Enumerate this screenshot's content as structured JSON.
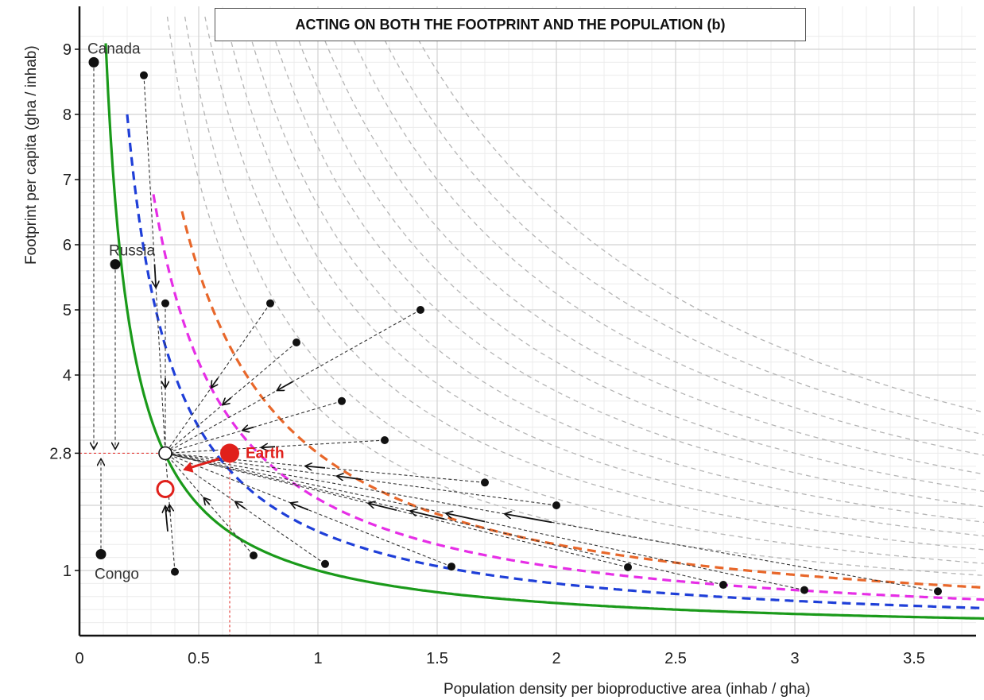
{
  "title": "ACTING ON BOTH THE FOOTPRINT AND THE POPULATION (b)",
  "colors": {
    "green": "#1a9a1a",
    "blue": "#1f3fd8",
    "magenta": "#e62ee6",
    "orange": "#e8672a",
    "gray": "#b5b5b5",
    "red": "#e0201b",
    "black": "#111111"
  },
  "chart_data": {
    "type": "scatter",
    "xlabel": "Population density per bioproductive area (inhab / gha)",
    "ylabel": "Footprint per capita (gha / inhab)",
    "xlim": [
      0,
      3.8
    ],
    "ylim": [
      0,
      9.3
    ],
    "x_ticks": [
      "0",
      "0.5",
      "1",
      "1.5",
      "2",
      "2.5",
      "3",
      "3.5"
    ],
    "y_ticks": [
      "1",
      "2.8",
      "4",
      "5",
      "6",
      "7",
      "8",
      "9"
    ],
    "x_tick_values": [
      0,
      0.5,
      1,
      1.5,
      2,
      2.5,
      3,
      3.5
    ],
    "y_tick_values": [
      1,
      2.8,
      4,
      5,
      6,
      7,
      8,
      9
    ],
    "grid": true,
    "curves": [
      {
        "color": "green",
        "style": "solid",
        "product": 1.0,
        "x_start": 0.11
      },
      {
        "color": "blue",
        "style": "dashed",
        "product": 1.6,
        "x_start": 0.2
      },
      {
        "color": "magenta",
        "style": "dashed",
        "product": 2.1,
        "x_start": 0.31
      },
      {
        "color": "orange",
        "style": "dashed",
        "product": 2.8,
        "x_start": 0.43
      }
    ],
    "gray_curves": [
      3.5,
      4.2,
      5.0,
      5.8,
      6.6,
      7.5,
      8.4,
      9.4,
      10.5,
      11.7,
      13.0
    ],
    "target": {
      "x": 0.36,
      "y": 2.8
    },
    "earth": {
      "label": "Earth",
      "x": 0.63,
      "y": 2.8
    },
    "earth_target": {
      "x": 0.36,
      "y": 2.25
    },
    "countries": [
      {
        "label": "Canada",
        "x": 0.06,
        "y": 8.8
      },
      {
        "label": "Russia",
        "x": 0.15,
        "y": 5.7
      },
      {
        "label": "Congo",
        "x": 0.09,
        "y": 1.25
      }
    ],
    "points": [
      {
        "x": 0.27,
        "y": 8.6
      },
      {
        "x": 0.36,
        "y": 5.1
      },
      {
        "x": 0.8,
        "y": 5.1
      },
      {
        "x": 0.91,
        "y": 4.5
      },
      {
        "x": 1.43,
        "y": 5.0
      },
      {
        "x": 1.1,
        "y": 3.6
      },
      {
        "x": 1.28,
        "y": 3.0
      },
      {
        "x": 1.7,
        "y": 2.35
      },
      {
        "x": 2.0,
        "y": 2.0
      },
      {
        "x": 1.56,
        "y": 1.06
      },
      {
        "x": 2.3,
        "y": 1.05
      },
      {
        "x": 2.7,
        "y": 0.78
      },
      {
        "x": 3.04,
        "y": 0.7
      },
      {
        "x": 3.6,
        "y": 0.68
      },
      {
        "x": 1.03,
        "y": 1.1
      },
      {
        "x": 0.73,
        "y": 1.23
      },
      {
        "x": 0.4,
        "y": 0.98
      }
    ]
  }
}
